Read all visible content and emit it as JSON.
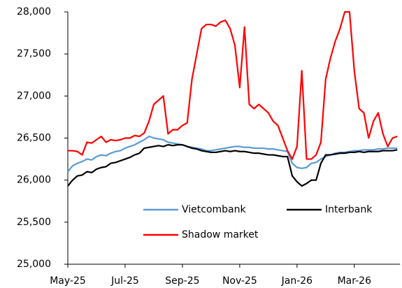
{
  "chart_data": {
    "type": "line",
    "categories": [
      "May-25",
      null,
      null,
      null,
      null,
      null,
      null,
      null,
      null,
      null,
      null,
      null,
      "Jul-25",
      null,
      null,
      null,
      null,
      null,
      null,
      null,
      null,
      null,
      null,
      null,
      "Sep-25",
      null,
      null,
      null,
      null,
      null,
      null,
      null,
      null,
      null,
      null,
      null,
      "Nov-25",
      null,
      null,
      null,
      null,
      null,
      null,
      null,
      null,
      null,
      null,
      null,
      "Jan-26",
      null,
      null,
      null,
      null,
      null,
      null,
      null,
      null,
      null,
      null,
      null,
      "Mar-26",
      null,
      null,
      null,
      null,
      null,
      null,
      null,
      null,
      null
    ],
    "series": [
      {
        "name": "Vietcombank",
        "color": "#5b9bd5",
        "values": [
          26100,
          26170,
          26200,
          26220,
          26250,
          26240,
          26280,
          26300,
          26290,
          26320,
          26340,
          26350,
          26380,
          26400,
          26420,
          26450,
          26480,
          26520,
          26500,
          26490,
          26480,
          26450,
          26440,
          26430,
          26420,
          26400,
          26390,
          26380,
          26370,
          26350,
          26350,
          26360,
          26370,
          26380,
          26390,
          26400,
          26400,
          26390,
          26390,
          26380,
          26380,
          26380,
          26370,
          26370,
          26360,
          26350,
          26340,
          26200,
          26150,
          26140,
          26150,
          26200,
          26210,
          26250,
          26280,
          26300,
          26320,
          26330,
          26330,
          26340,
          26350,
          26350,
          26360,
          26360,
          26360,
          26370,
          26370,
          26380,
          26380,
          26380
        ]
      },
      {
        "name": "Interbank",
        "color": "#000000",
        "values": [
          25930,
          26000,
          26050,
          26060,
          26100,
          26090,
          26130,
          26150,
          26160,
          26200,
          26210,
          26230,
          26250,
          26270,
          26300,
          26320,
          26380,
          26390,
          26400,
          26410,
          26400,
          26420,
          26410,
          26420,
          26420,
          26400,
          26380,
          26370,
          26350,
          26340,
          26330,
          26330,
          26340,
          26350,
          26340,
          26350,
          26340,
          26340,
          26330,
          26320,
          26320,
          26310,
          26300,
          26300,
          26290,
          26280,
          26280,
          26050,
          25980,
          25930,
          25960,
          26000,
          26000,
          26200,
          26300,
          26300,
          26310,
          26320,
          26320,
          26330,
          26330,
          26340,
          26330,
          26340,
          26340,
          26340,
          26350,
          26350,
          26350,
          26360
        ]
      },
      {
        "name": "Shadow market",
        "color": "#ff0000",
        "values": [
          26350,
          26350,
          26340,
          26300,
          26450,
          26440,
          26480,
          26520,
          26450,
          26480,
          26470,
          26480,
          26500,
          26500,
          26530,
          26520,
          26560,
          26700,
          26900,
          26950,
          27000,
          26550,
          26600,
          26600,
          26650,
          26680,
          27200,
          27500,
          27800,
          27850,
          27850,
          27830,
          27880,
          27900,
          27800,
          27600,
          27100,
          27820,
          26900,
          26850,
          26900,
          26850,
          26800,
          26700,
          26650,
          26500,
          26350,
          26250,
          26400,
          27300,
          26250,
          26250,
          26300,
          26450,
          27200,
          27450,
          27650,
          27800,
          28000,
          28000,
          27300,
          26850,
          26800,
          26500,
          26700,
          26800,
          26550,
          26400,
          26500,
          26520
        ]
      }
    ],
    "ylim": [
      25000,
      28000
    ],
    "yticks": [
      {
        "value": 25000,
        "label": "25,000"
      },
      {
        "value": 25500,
        "label": "25,500"
      },
      {
        "value": 26000,
        "label": "26,000"
      },
      {
        "value": 26500,
        "label": "26,500"
      },
      {
        "value": 27000,
        "label": "27,000"
      },
      {
        "value": 27500,
        "label": "27,500"
      },
      {
        "value": 28000,
        "label": "28,000"
      }
    ],
    "grid": false,
    "legend": "lower"
  }
}
